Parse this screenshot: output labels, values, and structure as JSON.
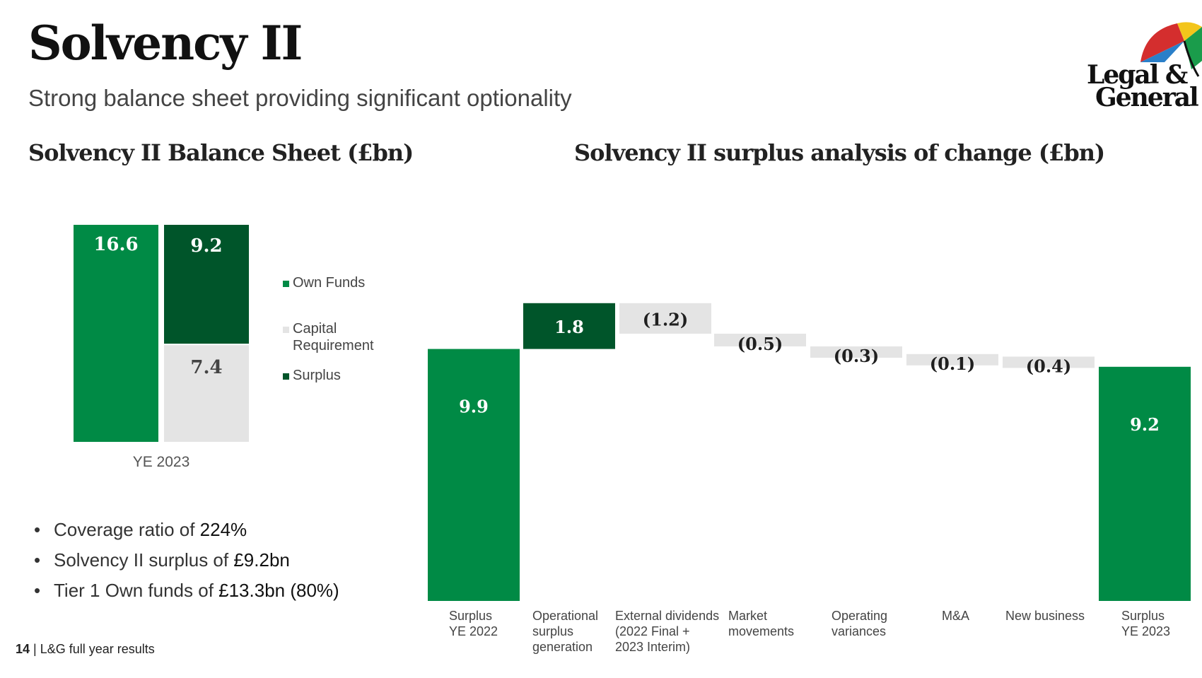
{
  "header": {
    "title": "Solvency II",
    "subtitle": "Strong balance sheet providing significant optionality"
  },
  "logo": {
    "line1": "Legal &",
    "line2": "General"
  },
  "colors": {
    "green": "#008a45",
    "dark_green": "#00552a",
    "grey": "#e4e4e4",
    "text_dark": "#1f1f1f"
  },
  "balance_sheet": {
    "title": "Solvency II Balance Sheet (£bn)",
    "legend": [
      "Own Funds",
      "Capital Requirement",
      "Surplus"
    ]
  },
  "waterfall": {
    "title": "Solvency II surplus analysis of change (£bn)"
  },
  "bullets": {
    "b1_text": "Coverage ratio of ",
    "b1_value": "224%",
    "b2_text": "Solvency II surplus of ",
    "b2_value": "£9.2bn",
    "b3_text": "Tier 1 Own funds of ",
    "b3_value": "£13.3bn (80%)"
  },
  "footer": {
    "page": "14",
    "separator": "|",
    "text": "L&G full year results"
  },
  "chart_data": [
    {
      "type": "bar",
      "title": "Solvency II Balance Sheet (£bn)",
      "categories": [
        "YE 2023"
      ],
      "series": [
        {
          "name": "Own Funds",
          "values": [
            16.6
          ],
          "labels": [
            "16.6"
          ]
        },
        {
          "name": "Capital Requirement",
          "values": [
            7.4
          ],
          "labels": [
            "7.4"
          ]
        },
        {
          "name": "Surplus",
          "values": [
            9.2
          ],
          "labels": [
            "9.2"
          ]
        }
      ],
      "stacked_groups": [
        [
          "Own Funds"
        ],
        [
          "Capital Requirement",
          "Surplus"
        ]
      ],
      "legend": [
        "Own Funds",
        "Capital Requirement",
        "Surplus"
      ],
      "legend_position": "right"
    },
    {
      "type": "waterfall",
      "title": "Solvency II surplus analysis of change (£bn)",
      "categories": [
        "Surplus\nYE 2022",
        "Operational\nsurplus\ngeneration",
        "External dividends\n(2022 Final +\n2023 Interim)",
        "Market\nmovements",
        "Operating\nvariances",
        "M&A",
        "New business",
        "Surplus\nYE 2023"
      ],
      "values": [
        9.9,
        1.8,
        -1.2,
        -0.5,
        -0.3,
        -0.1,
        -0.4,
        9.2
      ],
      "labels": [
        "9.9",
        "1.8",
        "(1.2)",
        "(0.5)",
        "(0.3)",
        "(0.1)",
        "(0.4)",
        "9.2"
      ],
      "kinds": [
        "total",
        "increase",
        "decrease",
        "decrease",
        "decrease",
        "decrease",
        "decrease",
        "total"
      ]
    }
  ]
}
